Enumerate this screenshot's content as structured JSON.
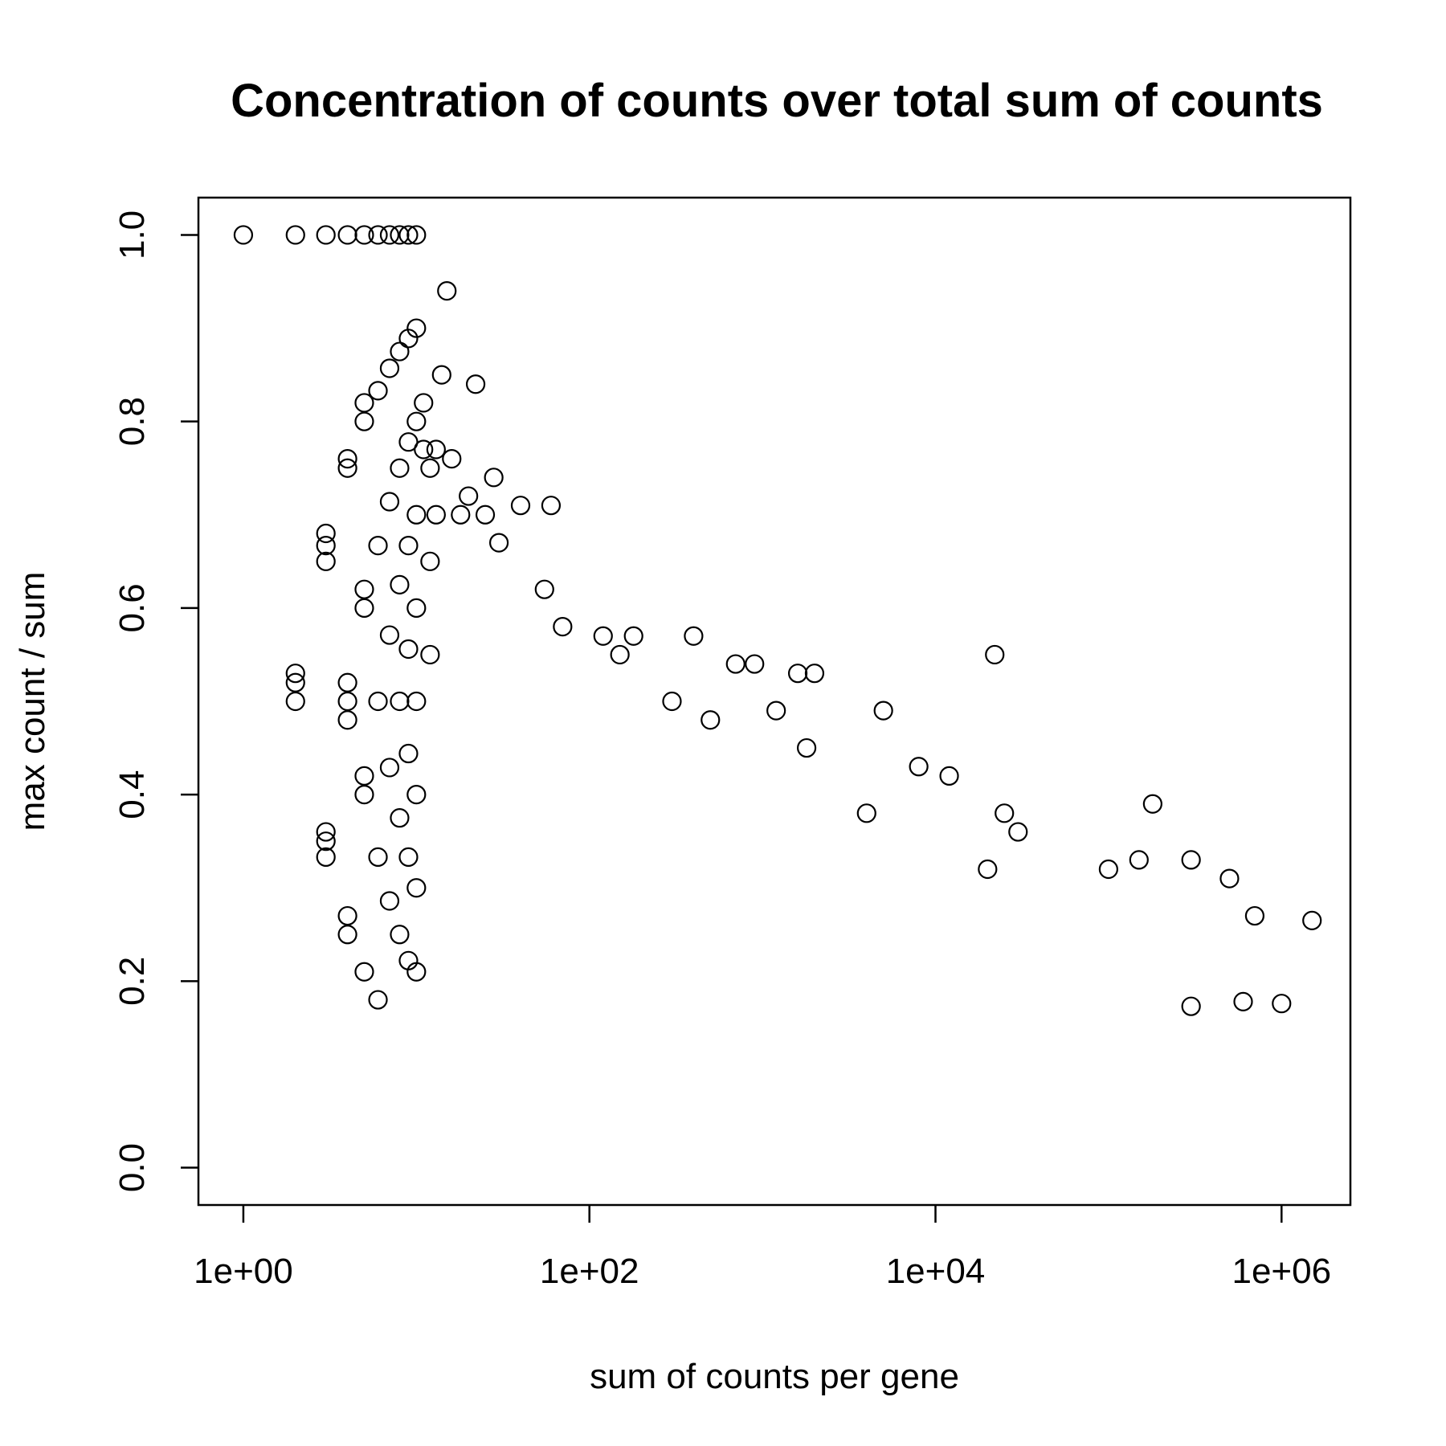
{
  "chart_data": {
    "type": "scatter",
    "title": "Concentration of counts over total sum of counts",
    "xlabel": "sum of counts per gene",
    "ylabel": "max count / sum",
    "x_scale": "log10",
    "xlim": [
      0.55,
      2500000
    ],
    "ylim": [
      -0.04,
      1.04
    ],
    "x_ticks": [
      1,
      100,
      10000,
      1000000
    ],
    "x_tick_labels": [
      "1e+00",
      "1e+02",
      "1e+04",
      "1e+06"
    ],
    "y_ticks": [
      0.0,
      0.2,
      0.4,
      0.6,
      0.8,
      1.0
    ],
    "y_tick_labels": [
      "0.0",
      "0.2",
      "0.4",
      "0.6",
      "0.8",
      "1.0"
    ],
    "grid": false,
    "legend": "none",
    "marker": "open-circle",
    "series": [
      {
        "points": [
          [
            1,
            1.0
          ],
          [
            2,
            1.0
          ],
          [
            3,
            1.0
          ],
          [
            4,
            1.0
          ],
          [
            5,
            1.0
          ],
          [
            6,
            1.0
          ],
          [
            7,
            1.0
          ],
          [
            8,
            1.0
          ],
          [
            9,
            1.0
          ],
          [
            10,
            1.0
          ],
          [
            2,
            0.5
          ],
          [
            2,
            0.52
          ],
          [
            2,
            0.53
          ],
          [
            3,
            0.667
          ],
          [
            3,
            0.65
          ],
          [
            3,
            0.68
          ],
          [
            3,
            0.333
          ],
          [
            3,
            0.35
          ],
          [
            3,
            0.36
          ],
          [
            4,
            0.75
          ],
          [
            4,
            0.76
          ],
          [
            4,
            0.5
          ],
          [
            4,
            0.52
          ],
          [
            4,
            0.48
          ],
          [
            4,
            0.25
          ],
          [
            4,
            0.27
          ],
          [
            5,
            0.8
          ],
          [
            5,
            0.82
          ],
          [
            5,
            0.6
          ],
          [
            5,
            0.62
          ],
          [
            5,
            0.4
          ],
          [
            5,
            0.42
          ],
          [
            5,
            0.21
          ],
          [
            6,
            0.833
          ],
          [
            6,
            0.667
          ],
          [
            6,
            0.5
          ],
          [
            6,
            0.333
          ],
          [
            6,
            0.18
          ],
          [
            7,
            0.857
          ],
          [
            7,
            0.714
          ],
          [
            7,
            0.571
          ],
          [
            7,
            0.429
          ],
          [
            7,
            0.286
          ],
          [
            8,
            0.875
          ],
          [
            8,
            0.75
          ],
          [
            8,
            0.625
          ],
          [
            8,
            0.5
          ],
          [
            8,
            0.375
          ],
          [
            8,
            0.25
          ],
          [
            9,
            0.889
          ],
          [
            9,
            0.778
          ],
          [
            9,
            0.667
          ],
          [
            9,
            0.556
          ],
          [
            9,
            0.444
          ],
          [
            9,
            0.333
          ],
          [
            9,
            0.222
          ],
          [
            10,
            0.9
          ],
          [
            10,
            0.8
          ],
          [
            10,
            0.7
          ],
          [
            10,
            0.6
          ],
          [
            10,
            0.5
          ],
          [
            10,
            0.4
          ],
          [
            10,
            0.3
          ],
          [
            10,
            0.21
          ],
          [
            11,
            0.82
          ],
          [
            11,
            0.77
          ],
          [
            12,
            0.75
          ],
          [
            12,
            0.65
          ],
          [
            12,
            0.55
          ],
          [
            13,
            0.77
          ],
          [
            13,
            0.7
          ],
          [
            14,
            0.85
          ],
          [
            15,
            0.94
          ],
          [
            16,
            0.76
          ],
          [
            18,
            0.7
          ],
          [
            20,
            0.72
          ],
          [
            22,
            0.84
          ],
          [
            25,
            0.7
          ],
          [
            28,
            0.74
          ],
          [
            30,
            0.67
          ],
          [
            40,
            0.71
          ],
          [
            60,
            0.71
          ],
          [
            55,
            0.62
          ],
          [
            70,
            0.58
          ],
          [
            120,
            0.57
          ],
          [
            150,
            0.55
          ],
          [
            180,
            0.57
          ],
          [
            300,
            0.5
          ],
          [
            400,
            0.57
          ],
          [
            500,
            0.48
          ],
          [
            700,
            0.54
          ],
          [
            900,
            0.54
          ],
          [
            1200,
            0.49
          ],
          [
            1600,
            0.53
          ],
          [
            2000,
            0.53
          ],
          [
            1800,
            0.45
          ],
          [
            4000,
            0.38
          ],
          [
            5000,
            0.49
          ],
          [
            8000,
            0.43
          ],
          [
            12000,
            0.42
          ],
          [
            22000,
            0.55
          ],
          [
            25000,
            0.38
          ],
          [
            20000,
            0.32
          ],
          [
            30000,
            0.36
          ],
          [
            100000,
            0.32
          ],
          [
            150000,
            0.33
          ],
          [
            180000,
            0.39
          ],
          [
            300000,
            0.33
          ],
          [
            500000,
            0.31
          ],
          [
            700000,
            0.27
          ],
          [
            1500000,
            0.265
          ],
          [
            1000000,
            0.176
          ],
          [
            600000,
            0.178
          ],
          [
            300000,
            0.173
          ]
        ]
      }
    ]
  }
}
